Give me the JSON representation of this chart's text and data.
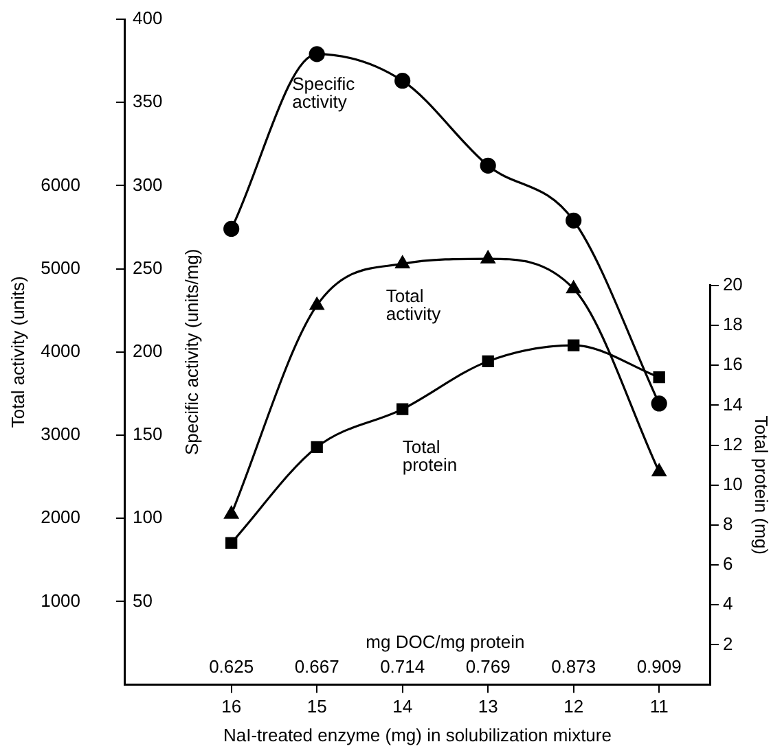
{
  "chart_data": {
    "type": "line",
    "xlabel": "NaI-treated enzyme (mg) in solubilization mixture",
    "ylabel": "Specific activity (units/mg)",
    "y2label": "Total protein (mg)",
    "y3label": "Total activity (units)",
    "x2label": "mg DOC/mg protein",
    "categories": [
      "16",
      "15",
      "14",
      "13",
      "12",
      "11"
    ],
    "annotations": [
      "0.625",
      "0.667",
      "0.714",
      "0.769",
      "0.873",
      "0.909"
    ],
    "ylim": [
      0,
      400
    ],
    "yticks": [
      50,
      100,
      150,
      200,
      250,
      300,
      350,
      400
    ],
    "y2lim": [
      0,
      20
    ],
    "y2ticks": [
      2,
      4,
      6,
      8,
      10,
      12,
      14,
      16,
      18,
      20
    ],
    "y3lim": [
      0,
      8000
    ],
    "y3ticks": [
      1000,
      2000,
      3000,
      4000,
      5000,
      6000
    ],
    "grid": false,
    "legend": false,
    "line_style": "solid",
    "series": [
      {
        "name": "Specific activity",
        "color": "#000000",
        "marker": "circle",
        "values": [
          274,
          379,
          363,
          312,
          279,
          169
        ]
      },
      {
        "name": "Total activity",
        "color": "#000000",
        "marker": "triangle",
        "axis": "y3",
        "values": [
          2050,
          4560,
          5060,
          5120,
          4760,
          2560
        ]
      },
      {
        "name": "Total protein",
        "color": "#000000",
        "marker": "square",
        "axis": "y2",
        "values": [
          7.1,
          11.9,
          13.8,
          16.2,
          17.0,
          15.4
        ]
      }
    ]
  }
}
